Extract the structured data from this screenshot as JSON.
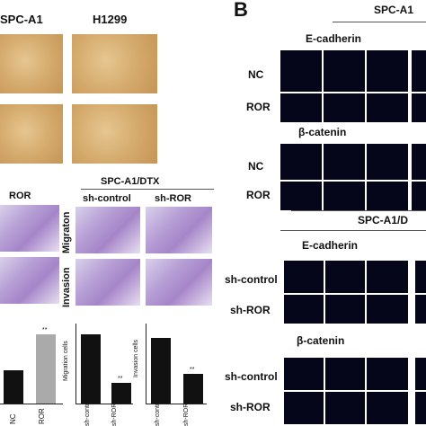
{
  "panel_labels": {
    "b": "B"
  },
  "panel_a": {
    "col_headers": [
      "SPC-A1",
      "H1299"
    ],
    "ror_label": "ROR",
    "dtx_header": "SPC-A1/DTX",
    "dtx_cols": [
      "sh-control",
      "sh-ROR"
    ],
    "dtx_rows": [
      "Migraton",
      "Invasion"
    ]
  },
  "panel_b": {
    "top_header": "SPC-A1",
    "mid_header": "SPC-A1/D",
    "markers": [
      "E-cadherin",
      "β-catenin"
    ],
    "top_rows": [
      "NC",
      "ROR"
    ],
    "bottom_rows": [
      "sh-control",
      "sh-ROR"
    ]
  },
  "colors": {
    "dark_bar": "#111111",
    "grey_bar": "#aaaaaa",
    "fluor_bg": "#06061a"
  },
  "chart_data": [
    {
      "type": "bar",
      "categories": [
        "NC",
        "ROR"
      ],
      "values": [
        30,
        62
      ],
      "significance": [
        "",
        "**"
      ],
      "ylabel": ""
    },
    {
      "type": "bar",
      "categories": [
        "sh-control",
        "sh-ROR"
      ],
      "values": [
        280,
        85
      ],
      "significance": [
        "",
        "**"
      ],
      "ylabel": "Migration cells",
      "ylim": [
        0,
        320
      ]
    },
    {
      "type": "bar",
      "categories": [
        "sh-control",
        "sh-ROR"
      ],
      "values": [
        265,
        120
      ],
      "significance": [
        "",
        "**"
      ],
      "ylabel": "Invasion cells",
      "ylim": [
        0,
        320
      ]
    }
  ]
}
